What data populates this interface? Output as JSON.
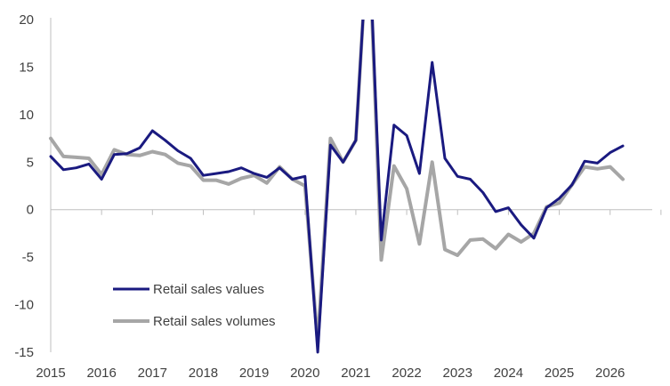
{
  "chart_data": {
    "type": "line",
    "title": "",
    "xlabel": "",
    "ylabel": "",
    "ylim": [
      -15,
      20
    ],
    "y_ticks": [
      20,
      15,
      10,
      5,
      0,
      -5,
      -10,
      -15
    ],
    "x_ticks": [
      "2015",
      "2016",
      "2017",
      "2018",
      "2019",
      "2020",
      "2021",
      "2022",
      "2023",
      "2024",
      "2025",
      "2026"
    ],
    "x_range": [
      2015.0,
      2026.25
    ],
    "grid": false,
    "legend_position": "lower-left",
    "series": [
      {
        "name": "Retail sales values",
        "color": "#1a1a80",
        "x": [
          2015.0,
          2015.25,
          2015.5,
          2015.75,
          2016.0,
          2016.25,
          2016.5,
          2016.75,
          2017.0,
          2017.25,
          2017.5,
          2017.75,
          2018.0,
          2018.25,
          2018.5,
          2018.75,
          2019.0,
          2019.25,
          2019.5,
          2019.75,
          2020.0,
          2020.25,
          2020.5,
          2020.75,
          2021.0,
          2021.25,
          2021.5,
          2021.75,
          2022.0,
          2022.25,
          2022.5,
          2022.75,
          2023.0,
          2023.25,
          2023.5,
          2023.75,
          2024.0,
          2024.25,
          2024.5,
          2024.75,
          2025.0,
          2025.25,
          2025.5,
          2025.75,
          2026.0,
          2026.25
        ],
        "values": [
          5.6,
          4.2,
          4.4,
          4.8,
          3.2,
          5.8,
          5.9,
          6.5,
          8.3,
          7.3,
          6.2,
          5.4,
          3.6,
          3.8,
          4.0,
          4.4,
          3.8,
          3.4,
          4.4,
          3.2,
          3.5,
          -15.0,
          6.8,
          5.0,
          7.3,
          30.0,
          -3.2,
          8.9,
          7.8,
          3.8,
          15.5,
          5.4,
          3.5,
          3.2,
          1.8,
          -0.2,
          0.2,
          -1.6,
          -3.0,
          0.2,
          1.2,
          2.6,
          5.1,
          4.9,
          6.0,
          6.7
        ]
      },
      {
        "name": "Retail sales volumes",
        "color": "#a6a6a6",
        "x": [
          2015.0,
          2015.25,
          2015.5,
          2015.75,
          2016.0,
          2016.25,
          2016.5,
          2016.75,
          2017.0,
          2017.25,
          2017.5,
          2017.75,
          2018.0,
          2018.25,
          2018.5,
          2018.75,
          2019.0,
          2019.25,
          2019.5,
          2019.75,
          2020.0,
          2020.25,
          2020.5,
          2020.75,
          2021.0,
          2021.25,
          2021.5,
          2021.75,
          2022.0,
          2022.25,
          2022.5,
          2022.75,
          2023.0,
          2023.25,
          2023.5,
          2023.75,
          2024.0,
          2024.25,
          2024.5,
          2024.75,
          2025.0,
          2025.25,
          2025.5,
          2025.75,
          2026.0,
          2026.25
        ],
        "values": [
          7.5,
          5.6,
          5.5,
          5.4,
          3.7,
          6.3,
          5.8,
          5.7,
          6.1,
          5.8,
          4.9,
          4.6,
          3.1,
          3.1,
          2.7,
          3.3,
          3.6,
          2.8,
          4.5,
          3.2,
          2.5,
          -14.0,
          7.5,
          5.0,
          7.3,
          30.0,
          -5.3,
          4.6,
          2.2,
          -3.6,
          5.0,
          -4.2,
          -4.8,
          -3.2,
          -3.1,
          -4.1,
          -2.6,
          -3.4,
          -2.5,
          0.3,
          0.7,
          2.6,
          4.5,
          4.3,
          4.5,
          3.2
        ]
      }
    ]
  }
}
